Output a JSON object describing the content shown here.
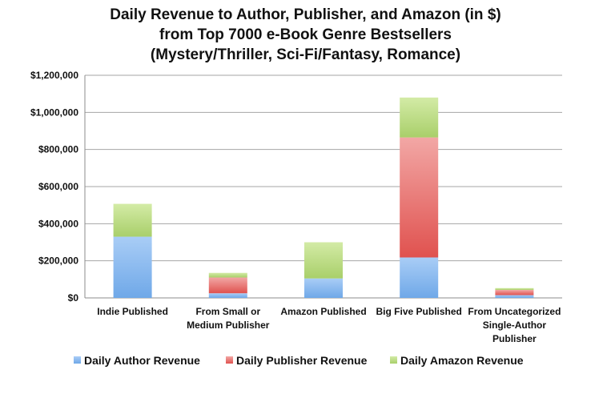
{
  "chart_data": {
    "type": "bar",
    "stacked": true,
    "title_lines": [
      "Daily Revenue to Author, Publisher, and Amazon (in $)",
      "from Top 7000 e-Book Genre Bestsellers",
      "(Mystery/Thriller, Sci-Fi/Fantasy, Romance)"
    ],
    "categories": [
      [
        "Indie Published"
      ],
      [
        "From Small or",
        "Medium Publisher"
      ],
      [
        "Amazon Published"
      ],
      [
        "Big Five Published"
      ],
      [
        "From Uncategorized",
        "Single-Author",
        "Publisher"
      ]
    ],
    "series": [
      {
        "name": "Daily Author Revenue",
        "color": "#6fa8e8",
        "color_light": "#a9cdf6",
        "values": [
          330000,
          25000,
          105000,
          218000,
          15000
        ]
      },
      {
        "name": "Daily Publisher Revenue",
        "color": "#e0524f",
        "color_light": "#f2a7a5",
        "values": [
          0,
          85000,
          0,
          647000,
          28000
        ]
      },
      {
        "name": "Daily Amazon Revenue",
        "color": "#a9cf6a",
        "color_light": "#d3eba6",
        "values": [
          177000,
          25000,
          195000,
          215000,
          10000
        ]
      }
    ],
    "ylim": [
      0,
      1200000
    ],
    "yticks": [
      0,
      200000,
      400000,
      600000,
      800000,
      1000000,
      1200000
    ],
    "ytick_labels": [
      "$0",
      "$200,000",
      "$400,000",
      "$600,000",
      "$800,000",
      "$1,000,000",
      "$1,200,000"
    ],
    "grid": true,
    "legend_position": "bottom"
  }
}
